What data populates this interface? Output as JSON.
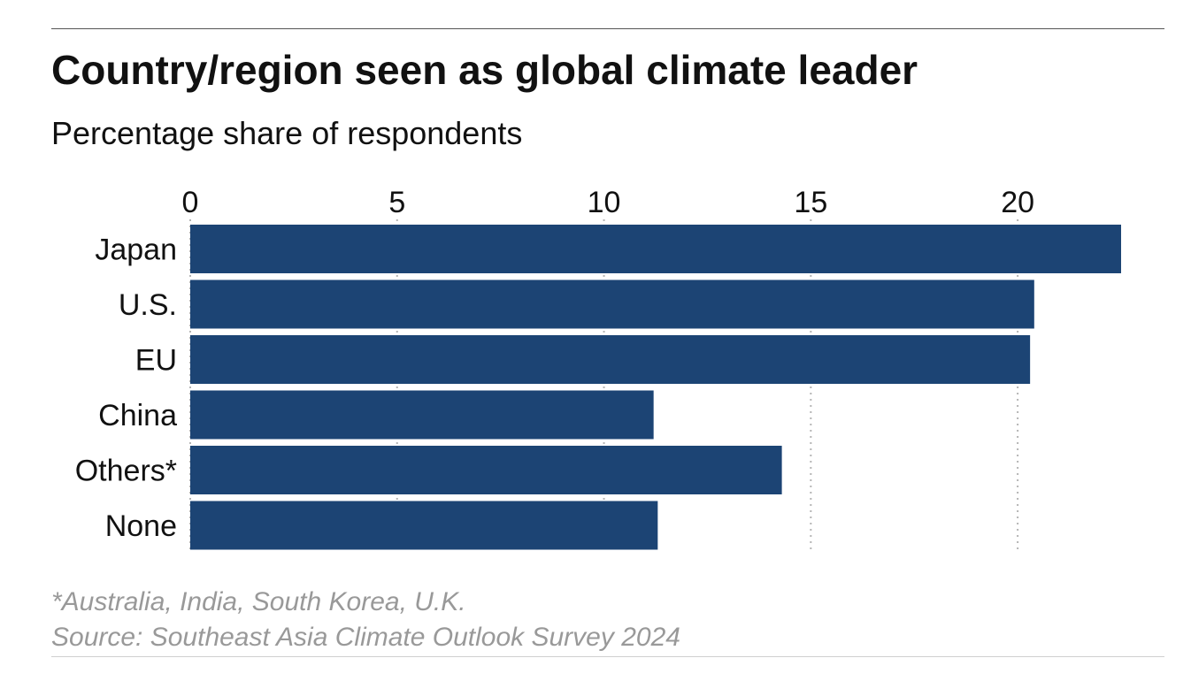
{
  "header": {
    "title": "Country/region seen as global climate leader",
    "subtitle": "Percentage share of respondents"
  },
  "footer": {
    "note": "*Australia, India, South Korea, U.K.",
    "source": "Source: Southeast Asia Climate Outlook Survey 2024"
  },
  "colors": {
    "bar": "#1c4474",
    "grid": "#b5b5b5",
    "text": "#111111",
    "footnote": "#999999"
  },
  "chart_data": {
    "type": "bar",
    "orientation": "horizontal",
    "title": "Country/region seen as global climate leader",
    "subtitle": "Percentage share of respondents",
    "categories": [
      "Japan",
      "U.S.",
      "EU",
      "China",
      "Others*",
      "None"
    ],
    "values": [
      22.5,
      20.4,
      20.3,
      11.2,
      14.3,
      11.3
    ],
    "xlim": [
      0,
      22.5
    ],
    "xticks": [
      0,
      5,
      10,
      15,
      20
    ],
    "x_axis_position": "top",
    "grid": "vertical dotted",
    "legend": "none"
  }
}
